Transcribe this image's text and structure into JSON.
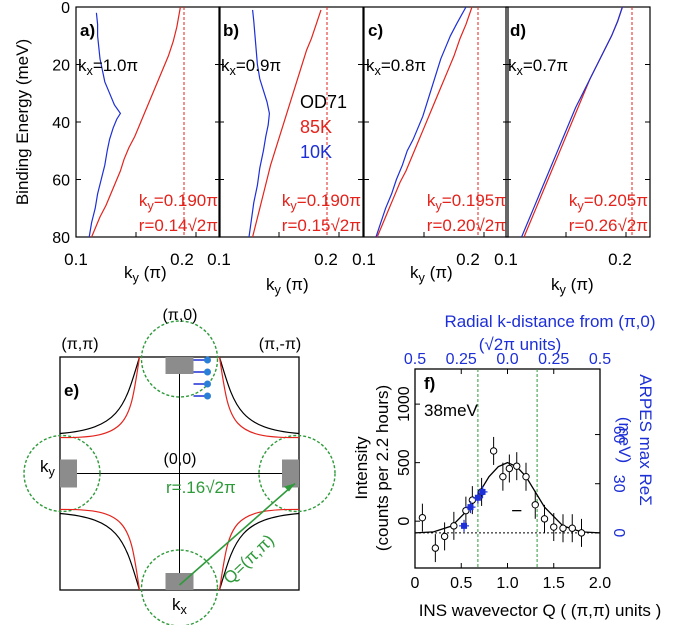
{
  "colors": {
    "red": "#e3231c",
    "blue": "#1d2fd6",
    "green": "#2e9a3a",
    "black": "#000000",
    "gray": "#8c8c8c"
  },
  "chart_data": [
    {
      "type": "line",
      "panel_letters": [
        "a)",
        "b)",
        "c)",
        "d)"
      ],
      "kx_labels": [
        "1.0",
        "0.9",
        "0.8",
        "0.7"
      ],
      "kx_prefix": "k",
      "kx_sub": "x",
      "pi_symbol": "π",
      "ylabel": "Binding Energy (meV)",
      "xlabel_main": "k",
      "xlabel_sub": "y",
      "xlabel_unit": " (π)",
      "yticks": [
        "0",
        "20",
        "40",
        "60",
        "80"
      ],
      "ylim": [
        0,
        80
      ],
      "xlim": [
        0.1,
        0.22
      ],
      "xtick_labels": [
        "0.1",
        "0.2"
      ],
      "legend": {
        "sample": "OD71",
        "red_series": "85K",
        "blue_series": "10K"
      },
      "ky_labels": [
        "0.190π",
        "0.190π",
        "0.195π",
        "0.205π"
      ],
      "r_labels": [
        "0.14√2π",
        "0.15√2π",
        "0.20√2π",
        "0.26√2π"
      ],
      "ky_prefix": "k",
      "ky_sub": "y",
      "r_prefix": "r=",
      "series": [
        {
          "name": "85K",
          "panel": "a",
          "k": [
            0.113,
            0.116,
            0.12,
            0.125,
            0.129,
            0.133,
            0.137,
            0.14,
            0.144,
            0.149,
            0.153,
            0.157,
            0.161,
            0.165,
            0.169,
            0.173,
            0.177,
            0.181,
            0.184,
            0.187
          ],
          "energy": [
            80,
            77,
            73,
            69,
            65,
            61,
            57,
            53,
            49,
            45,
            41,
            37,
            33,
            29,
            25,
            21,
            17,
            12,
            7,
            0
          ]
        },
        {
          "name": "10K",
          "panel": "a",
          "k": [
            0.111,
            0.113,
            0.116,
            0.118,
            0.121,
            0.124,
            0.126,
            0.128,
            0.131,
            0.134,
            0.137,
            0.132,
            0.128,
            0.124,
            0.122,
            0.12,
            0.119,
            0.118,
            0.118,
            0.117
          ],
          "energy": [
            80,
            75,
            70,
            65,
            60,
            55,
            50,
            46,
            42,
            39,
            37,
            34,
            30,
            26,
            22,
            18,
            14,
            10,
            6,
            2
          ]
        },
        {
          "name": "85K",
          "panel": "b",
          "k": [
            0.128,
            0.131,
            0.134,
            0.137,
            0.14,
            0.143,
            0.146,
            0.149,
            0.152,
            0.155,
            0.158,
            0.161,
            0.164,
            0.167,
            0.17,
            0.173,
            0.177,
            0.181,
            0.185
          ],
          "energy": [
            80,
            75,
            70,
            65,
            60,
            55,
            51,
            47,
            43,
            39,
            35,
            31,
            27,
            23,
            19,
            15,
            11,
            6,
            1
          ]
        },
        {
          "name": "10K",
          "panel": "b",
          "k": [
            0.125,
            0.127,
            0.129,
            0.132,
            0.134,
            0.137,
            0.139,
            0.141,
            0.142,
            0.14,
            0.137,
            0.134,
            0.132,
            0.131,
            0.13,
            0.129,
            0.128
          ],
          "energy": [
            80,
            74,
            68,
            62,
            56,
            50,
            45,
            41,
            37,
            33,
            29,
            25,
            20,
            15,
            10,
            5,
            1
          ]
        },
        {
          "name": "85K",
          "panel": "c",
          "k": [
            0.111,
            0.115,
            0.12,
            0.125,
            0.13,
            0.135,
            0.14,
            0.145,
            0.15,
            0.155,
            0.16,
            0.165,
            0.17,
            0.175,
            0.18,
            0.185,
            0.19
          ],
          "energy": [
            80,
            76,
            71,
            66,
            61,
            57,
            52,
            47,
            42,
            37,
            32,
            27,
            22,
            17,
            11,
            6,
            0
          ]
        },
        {
          "name": "10K",
          "panel": "c",
          "k": [
            0.11,
            0.114,
            0.118,
            0.123,
            0.127,
            0.132,
            0.136,
            0.141,
            0.145,
            0.149,
            0.152,
            0.155,
            0.158,
            0.161,
            0.164,
            0.168,
            0.172,
            0.177,
            0.181,
            0.185
          ],
          "energy": [
            80,
            75,
            70,
            65,
            60,
            55,
            50,
            46,
            42,
            38,
            34,
            30,
            26,
            22,
            18,
            14,
            10,
            6,
            3,
            0
          ]
        },
        {
          "name": "85K",
          "panel": "d",
          "k": [
            0.115,
            0.12,
            0.125,
            0.13,
            0.135,
            0.14,
            0.145,
            0.15,
            0.155,
            0.16,
            0.165,
            0.17,
            0.176,
            0.182,
            0.188,
            0.193,
            0.197
          ],
          "energy": [
            80,
            75,
            70,
            65,
            60,
            55,
            50,
            45,
            40,
            35,
            30,
            25,
            20,
            15,
            10,
            5,
            0
          ]
        },
        {
          "name": "10K",
          "panel": "d",
          "k": [
            0.113,
            0.118,
            0.123,
            0.128,
            0.133,
            0.138,
            0.143,
            0.148,
            0.153,
            0.158,
            0.164,
            0.17,
            0.176,
            0.182,
            0.188,
            0.193,
            0.197
          ],
          "energy": [
            80,
            75,
            70,
            65,
            60,
            55,
            50,
            45,
            40,
            35,
            30,
            25,
            20,
            15,
            10,
            5,
            0
          ]
        }
      ]
    },
    {
      "type": "diagram",
      "panel_letter": "e)",
      "corner_labels": {
        "top_left": "(π,π)",
        "top_mid": "(π,0)",
        "top_right": "(π,-π)",
        "center": "(0,0)"
      },
      "axis_labels": {
        "ky": "k",
        "ky_sub": "y",
        "kx": "k",
        "kx_sub": "x"
      },
      "r_label": "r=.16√2π",
      "q_label": "Q=(π,π)"
    },
    {
      "type": "scatter",
      "panel_letter": "f)",
      "energy_label": "38meV",
      "xlabel": "INS wavevector Q ( (π,π) units )",
      "ylabel_line1": "Intensity",
      "ylabel_line2": "(counts per 2.2 hours)",
      "right_ylabel_line1": "ARPES max ReΣ",
      "right_ylabel_line2": "(meV)",
      "top_title_line1": "Radial k-distance from (π,0)",
      "top_title_line2": "(√2π units)",
      "xticks": [
        "0",
        "0.5",
        "1.0",
        "1.5",
        "2.0"
      ],
      "top_ticks": [
        "0.5",
        "0.25",
        "0.0",
        "0.25",
        "0.5"
      ],
      "yticks": [
        "0",
        "500",
        "1000"
      ],
      "right_yticks": [
        "0",
        "30",
        "60"
      ],
      "xlim": [
        0,
        2.0
      ],
      "ylim": [
        -400,
        1300
      ],
      "green_lines_x": [
        0.68,
        1.32
      ],
      "ins_points": {
        "x": [
          0.08,
          0.22,
          0.32,
          0.42,
          0.55,
          0.62,
          0.72,
          0.85,
          0.95,
          1.02,
          1.1,
          1.2,
          1.3,
          1.4,
          1.5,
          1.6,
          1.7,
          1.8
        ],
        "y": [
          30,
          -230,
          -130,
          -40,
          90,
          180,
          250,
          600,
          380,
          450,
          470,
          380,
          140,
          20,
          -50,
          -60,
          -60,
          -100
        ]
      },
      "arpes_points": {
        "x": [
          0.53,
          0.6,
          0.68,
          0.73
        ],
        "y": [
          -40,
          120,
          200,
          250
        ]
      },
      "fit_curve": {
        "x": [
          0.0,
          0.2,
          0.4,
          0.6,
          0.8,
          0.9,
          1.0,
          1.1,
          1.2,
          1.4,
          1.6,
          1.8,
          2.0
        ],
        "y": [
          -100,
          -92,
          -40,
          120,
          380,
          465,
          500,
          465,
          380,
          120,
          -40,
          -92,
          -100
        ]
      },
      "baseline_y": -100
    }
  ]
}
